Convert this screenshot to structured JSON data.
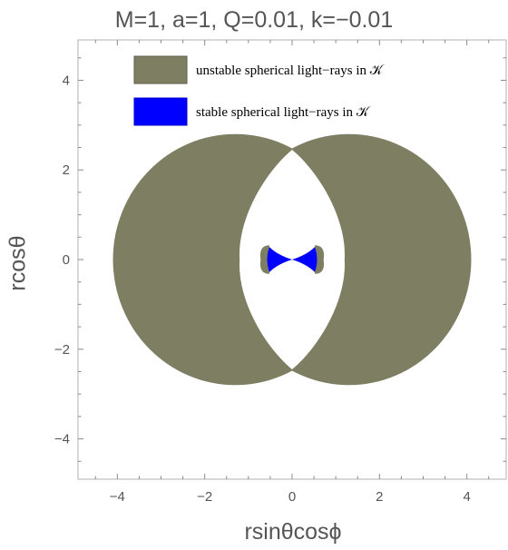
{
  "chart_data": {
    "type": "area",
    "title": "M=1, a=1, Q=0.01, k=−0.01",
    "xlabel": "rsinθcosϕ",
    "ylabel": "rcosθ",
    "xlim": [
      -4.9,
      4.9
    ],
    "ylim": [
      -4.9,
      4.9
    ],
    "x_ticks": [
      -4,
      -2,
      0,
      2,
      4
    ],
    "y_ticks": [
      -4,
      -2,
      0,
      2,
      4
    ],
    "x_tick_labels": [
      "−4",
      "−2",
      "0",
      "2",
      "4"
    ],
    "y_tick_labels": [
      "−4",
      "−2",
      "0",
      "2",
      "4"
    ],
    "grid": false,
    "legend_position": "top-right",
    "series": [
      {
        "name": "unstable spherical light−rays in 𝒦",
        "color": "#7e7e63",
        "region": {
          "lobes": [
            {
              "center": [
                -1.3,
                0
              ],
              "radius": 2.8
            },
            {
              "center": [
                1.3,
                0
              ],
              "radius": 2.8
            }
          ],
          "excluded_center_halfwidth_at_y0": 1.2,
          "lobe_intersections": [
            [
              0,
              2.45
            ],
            [
              0,
              -2.45
            ]
          ],
          "small_shells_outer_x": [
            -0.72,
            0.72
          ],
          "small_shells_halfheight": 0.32
        }
      },
      {
        "name": "stable spherical light−rays in 𝒦",
        "color": "#0000ff",
        "region": {
          "wedges": [
            {
              "x_range": [
                -0.6,
                0.0
              ],
              "max_halfheight": 0.28
            },
            {
              "x_range": [
                0.0,
                0.6
              ],
              "max_halfheight": 0.28
            }
          ]
        }
      }
    ]
  }
}
